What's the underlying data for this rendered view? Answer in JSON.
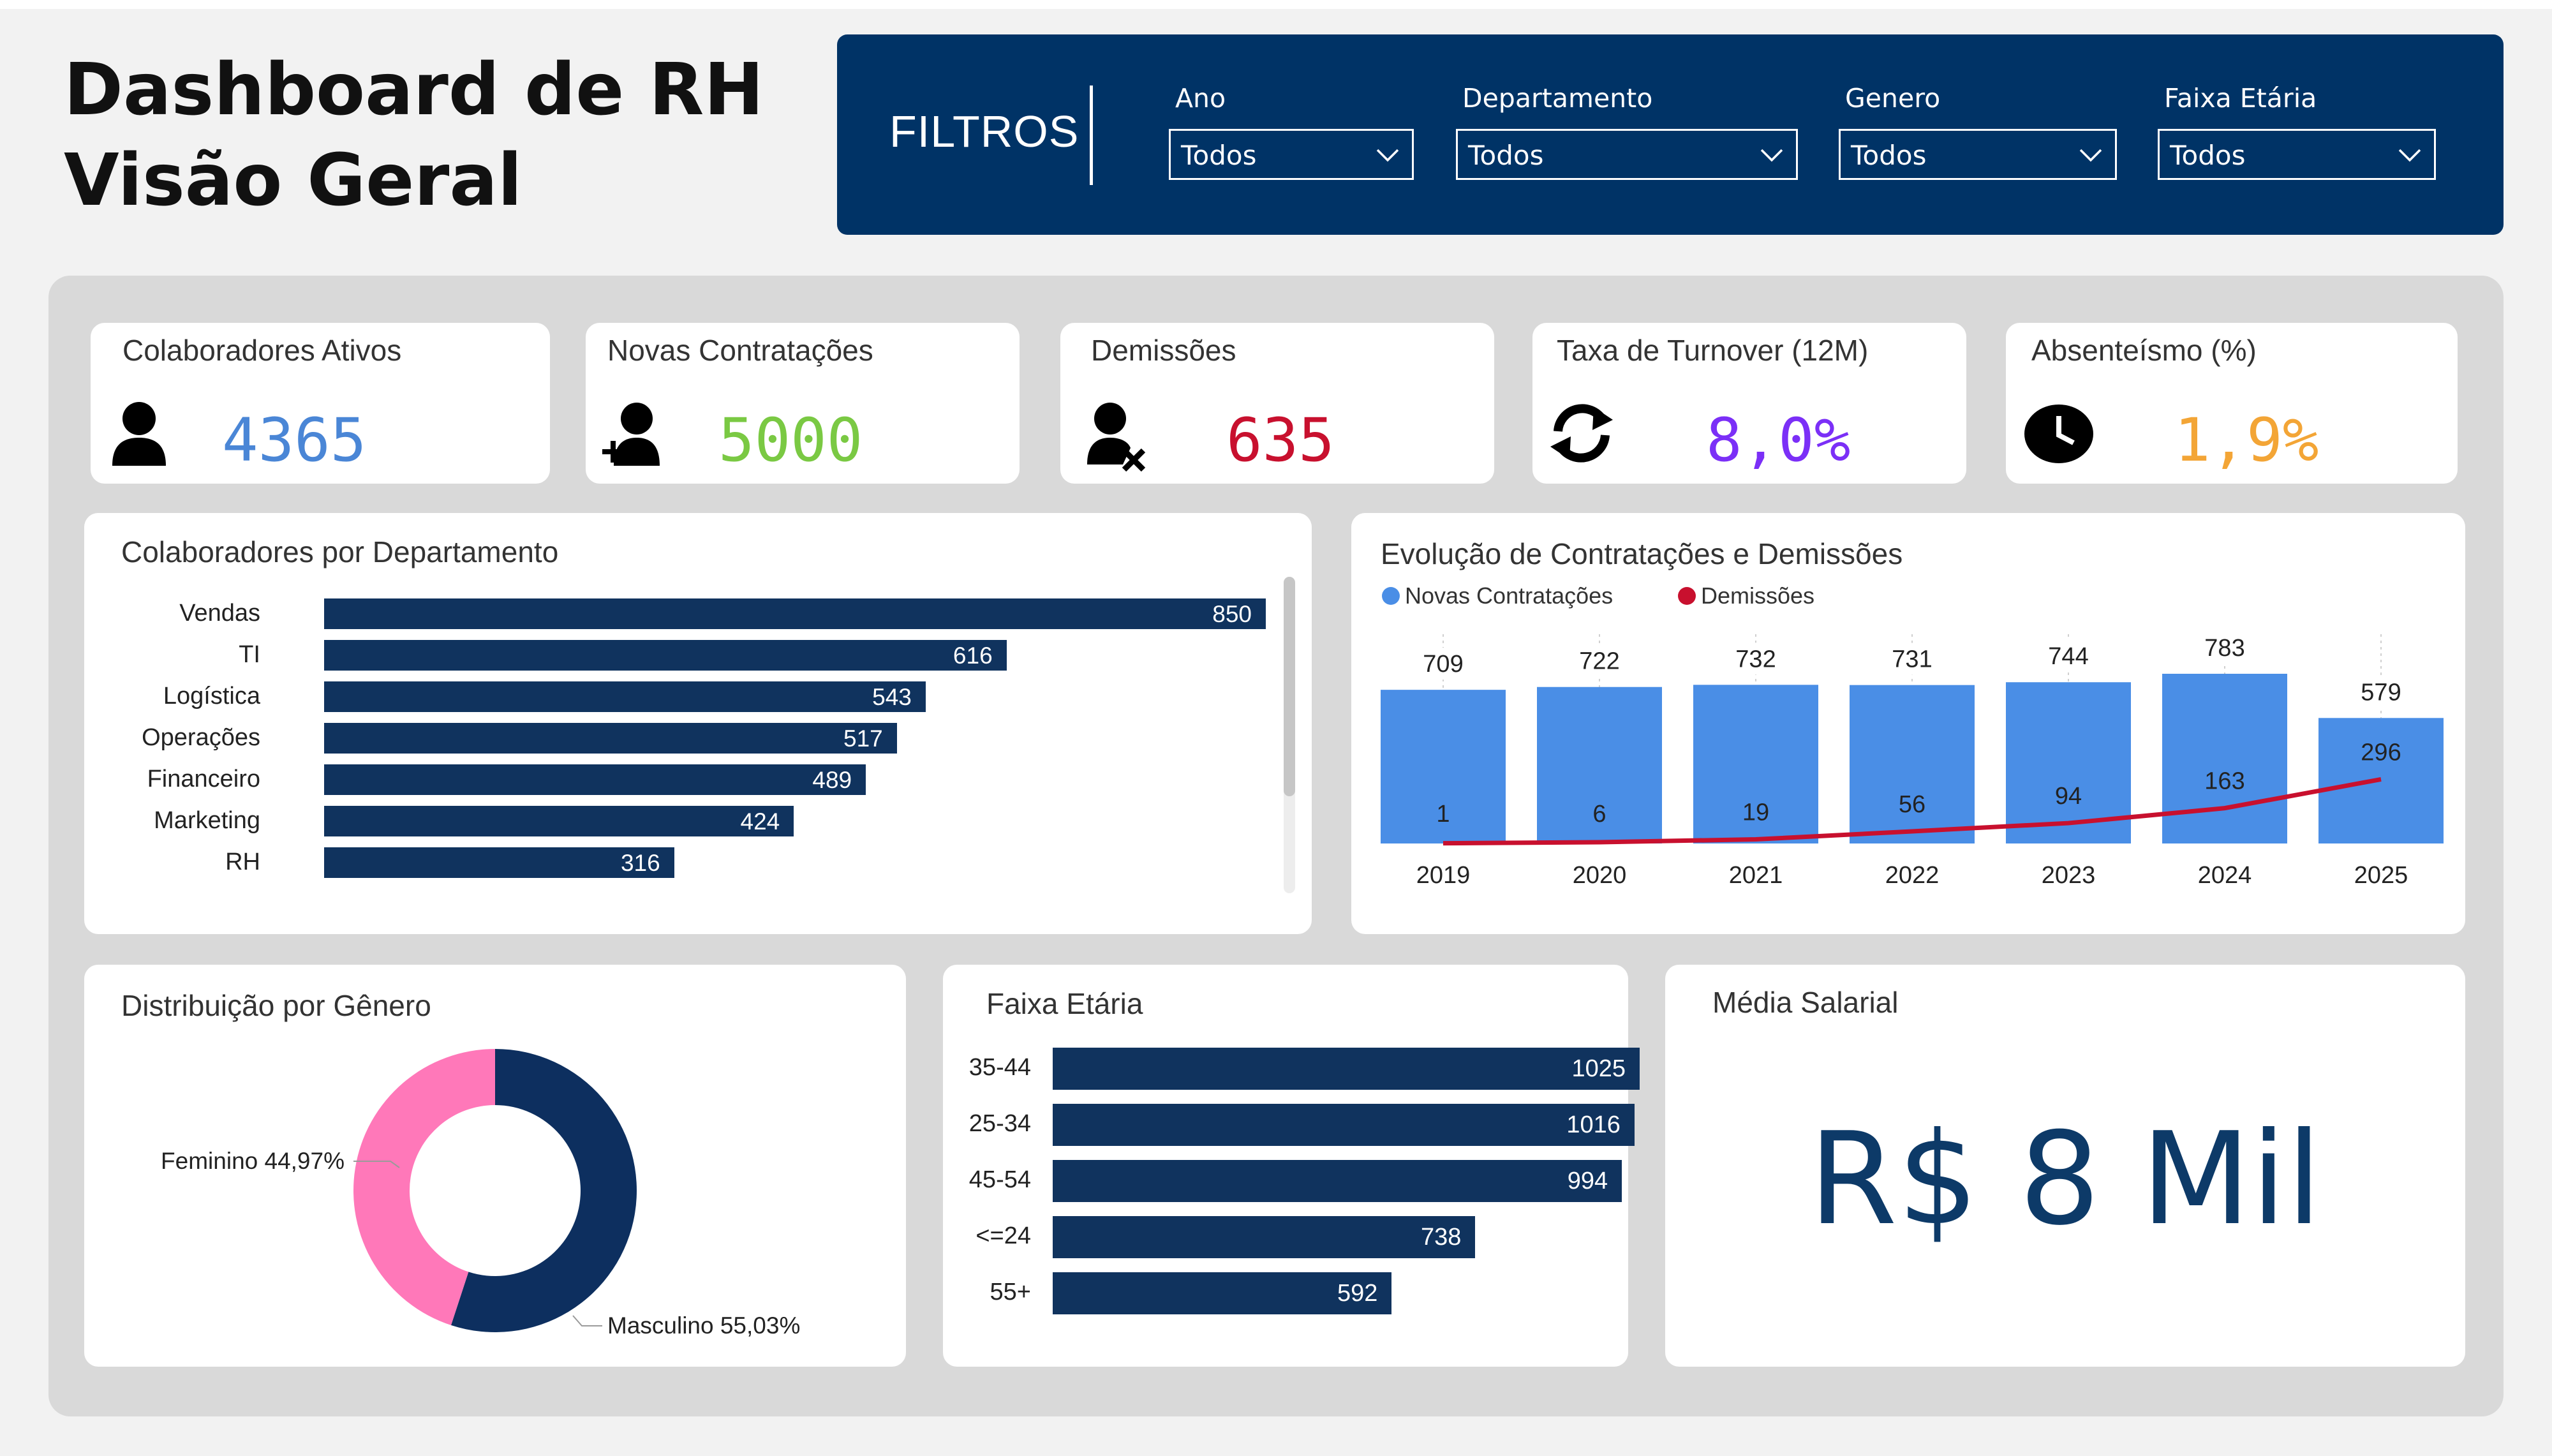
{
  "header": {
    "title_line1": "Dashboard de RH",
    "title_line2": "Visão Geral"
  },
  "filters": {
    "title": "FILTROS",
    "items": [
      {
        "label": "Ano",
        "value": "Todos"
      },
      {
        "label": "Departamento",
        "value": "Todos"
      },
      {
        "label": "Genero",
        "value": "Todos"
      },
      {
        "label": "Faixa Etária",
        "value": "Todos"
      }
    ]
  },
  "kpis": [
    {
      "title": "Colaboradores Ativos",
      "value": "4365",
      "color": "#4a86d6",
      "icon": "person-icon"
    },
    {
      "title": "Novas Contratações",
      "value": "5000",
      "color": "#7ac943",
      "icon": "person-add-icon"
    },
    {
      "title": "Demissões",
      "value": "635",
      "color": "#c8102e",
      "icon": "person-remove-icon"
    },
    {
      "title": "Taxa de Turnover (12M)",
      "value": "8,0%",
      "color": "#7b2ff7",
      "icon": "refresh-icon"
    },
    {
      "title": "Absenteísmo (%)",
      "value": "1,9%",
      "color": "#f3a536",
      "icon": "clock-icon"
    }
  ],
  "departments": {
    "title": "Colaboradores por Departamento",
    "bar_color": "#10335e",
    "items": [
      {
        "name": "Vendas",
        "value": 850
      },
      {
        "name": "TI",
        "value": 616
      },
      {
        "name": "Logística",
        "value": 543
      },
      {
        "name": "Operações",
        "value": 517
      },
      {
        "name": "Financeiro",
        "value": 489
      },
      {
        "name": "Marketing",
        "value": 424
      },
      {
        "name": "RH",
        "value": 316
      }
    ]
  },
  "chart_data": [
    {
      "type": "bar",
      "title": "Evolução de Contratações e Demissões",
      "categories": [
        "2019",
        "2020",
        "2021",
        "2022",
        "2023",
        "2024",
        "2025"
      ],
      "series": [
        {
          "name": "Novas Contratações",
          "type": "bar",
          "color": "#4a8ee6",
          "values": [
            709,
            722,
            732,
            731,
            744,
            783,
            579
          ]
        },
        {
          "name": "Demissões",
          "type": "line",
          "color": "#c8102e",
          "values": [
            1,
            6,
            19,
            56,
            94,
            163,
            296
          ]
        }
      ],
      "legend": "top-left"
    },
    {
      "type": "pie",
      "title": "Distribuição por Gênero",
      "slices": [
        {
          "label": "Masculino",
          "value": 55.03,
          "text": "Masculino 55,03%",
          "color": "#0d2f5f"
        },
        {
          "label": "Feminino",
          "value": 44.97,
          "text": "Feminino 44,97%",
          "color": "#ff78b9"
        }
      ]
    },
    {
      "type": "bar",
      "title": "Faixa Etária",
      "categories": [
        "35-44",
        "25-34",
        "45-54",
        "<=24",
        "55+"
      ],
      "values": [
        1025,
        1016,
        994,
        738,
        592
      ],
      "color": "#10335e"
    }
  ],
  "salary": {
    "title": "Média Salarial",
    "value": "R$ 8 Mil"
  }
}
